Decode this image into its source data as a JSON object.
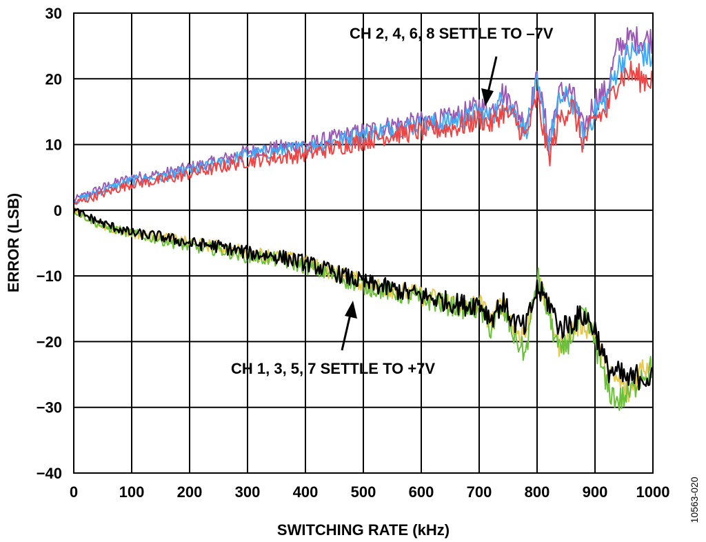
{
  "chart_data": {
    "type": "line",
    "title": "",
    "xlabel": "SWITCHING RATE (kHz)",
    "ylabel": "ERROR (LSB)",
    "xlim": [
      0,
      1000
    ],
    "ylim": [
      -40,
      30
    ],
    "x_ticks": [
      "0",
      "100",
      "200",
      "300",
      "400",
      "500",
      "600",
      "700",
      "800",
      "900",
      "1000"
    ],
    "y_ticks": [
      "30",
      "20",
      "10",
      "0",
      "−10",
      "−20",
      "−30",
      "−40"
    ],
    "grid": true,
    "figure_id": "10563-020",
    "annotations": [
      {
        "text": "CH 2, 4, 6, 8 SETTLE TO –7V",
        "points_to": [
          710,
          15
        ]
      },
      {
        "text": "CH 1, 3, 5, 7 SETTLE TO +7V",
        "points_to": [
          485,
          -12
        ]
      }
    ],
    "x": [
      0,
      50,
      100,
      150,
      200,
      250,
      300,
      350,
      400,
      450,
      500,
      550,
      600,
      650,
      680,
      700,
      720,
      740,
      760,
      780,
      800,
      820,
      840,
      860,
      880,
      900,
      920,
      940,
      960,
      980,
      1000
    ],
    "series": [
      {
        "color": "#9b59b6",
        "values": [
          1.5,
          3.5,
          5,
          5.5,
          6.5,
          7.5,
          9,
          9.5,
          10,
          11,
          12,
          13,
          13.5,
          14,
          15,
          16,
          15,
          18,
          16,
          13,
          20,
          11,
          18,
          18,
          12,
          17,
          18,
          25,
          26,
          26,
          26
        ]
      },
      {
        "color": "#3fa9f5",
        "values": [
          1.3,
          3,
          4.5,
          5,
          6,
          7,
          8.5,
          9,
          9.5,
          10.5,
          11.5,
          12.5,
          13,
          13.5,
          14,
          15,
          14,
          17,
          15,
          12,
          19,
          10,
          17,
          17,
          11,
          15,
          17,
          22,
          24,
          24,
          23
        ]
      },
      {
        "color": "#ef4444",
        "values": [
          1,
          2.5,
          4,
          4.5,
          5.5,
          6.5,
          7.5,
          8,
          8.5,
          9.5,
          10.5,
          11.5,
          12,
          12.5,
          13,
          14,
          13,
          15,
          14,
          11,
          17,
          8,
          14,
          16,
          10,
          14,
          15,
          20,
          21,
          20,
          20
        ]
      },
      {
        "color": "#e6c84a",
        "values": [
          0,
          -2.5,
          -3.5,
          -4,
          -5,
          -5.5,
          -6.5,
          -7,
          -8,
          -9.5,
          -11,
          -12,
          -13,
          -14,
          -15,
          -14,
          -17,
          -14,
          -18,
          -19,
          -11,
          -15,
          -21,
          -18,
          -17,
          -19,
          -25,
          -26,
          -28,
          -24,
          -23
        ]
      },
      {
        "color": "#6cbf3a",
        "values": [
          0,
          -2.5,
          -3.5,
          -4.5,
          -5.5,
          -6,
          -7,
          -7.5,
          -8.5,
          -10,
          -11.5,
          -12.5,
          -13.5,
          -14.5,
          -15,
          -15,
          -18,
          -15,
          -19,
          -22,
          -10,
          -16,
          -22,
          -19,
          -16,
          -20,
          -27,
          -29,
          -28,
          -25,
          -24
        ]
      },
      {
        "color": "#000000",
        "values": [
          0,
          -2,
          -3.5,
          -4,
          -5,
          -5.5,
          -6.5,
          -7,
          -8,
          -9.5,
          -11,
          -12,
          -13,
          -14,
          -14.5,
          -14,
          -16.5,
          -14,
          -17,
          -18,
          -12,
          -14,
          -18,
          -17,
          -16,
          -18,
          -24,
          -25,
          -26,
          -25,
          -26
        ]
      }
    ]
  }
}
